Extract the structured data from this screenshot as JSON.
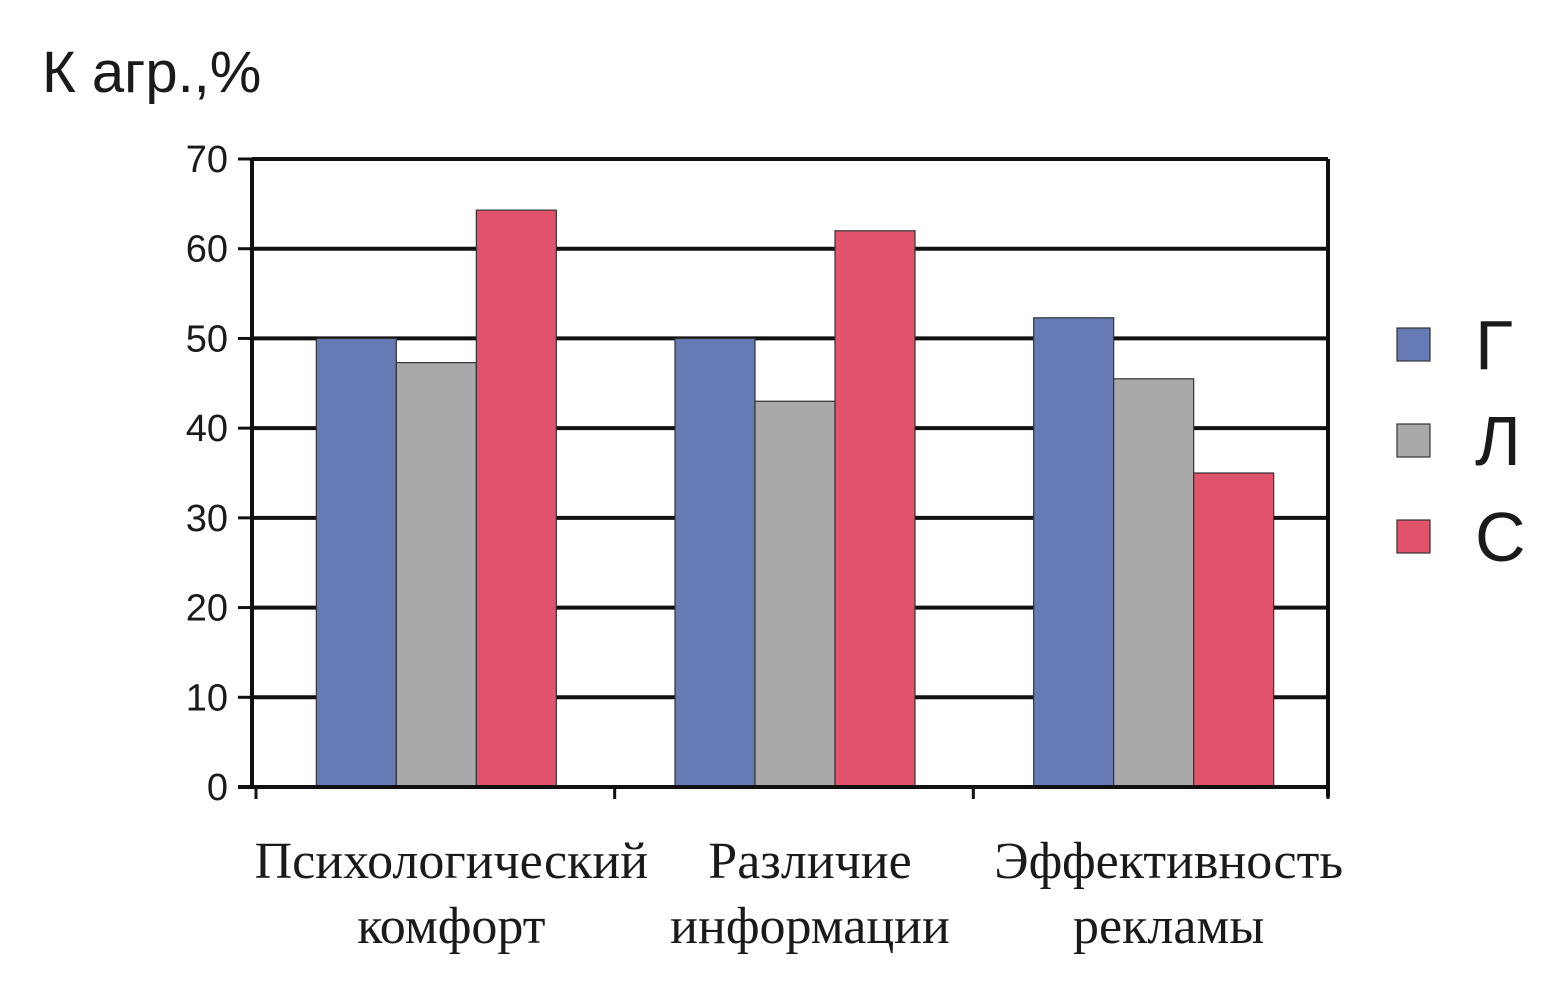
{
  "chart_data": {
    "type": "bar",
    "ylabel": "К агр.,%",
    "categories": [
      [
        "Психологический",
        "комфорт"
      ],
      [
        "Различие",
        "информации"
      ],
      [
        "Эффективность",
        "рекламы"
      ]
    ],
    "series": [
      {
        "name": "Г",
        "color": "#667BB4",
        "values": [
          50,
          50,
          52.3
        ]
      },
      {
        "name": "Л",
        "color": "#A9A9A9",
        "values": [
          47.3,
          43,
          45.5
        ]
      },
      {
        "name": "С",
        "color": "#E0536A",
        "values": [
          64.3,
          62,
          35
        ]
      }
    ],
    "ylim": [
      0,
      70
    ],
    "yticks": [
      0,
      10,
      20,
      30,
      40,
      50,
      60,
      70
    ],
    "grid": true,
    "legend_position": "right"
  }
}
